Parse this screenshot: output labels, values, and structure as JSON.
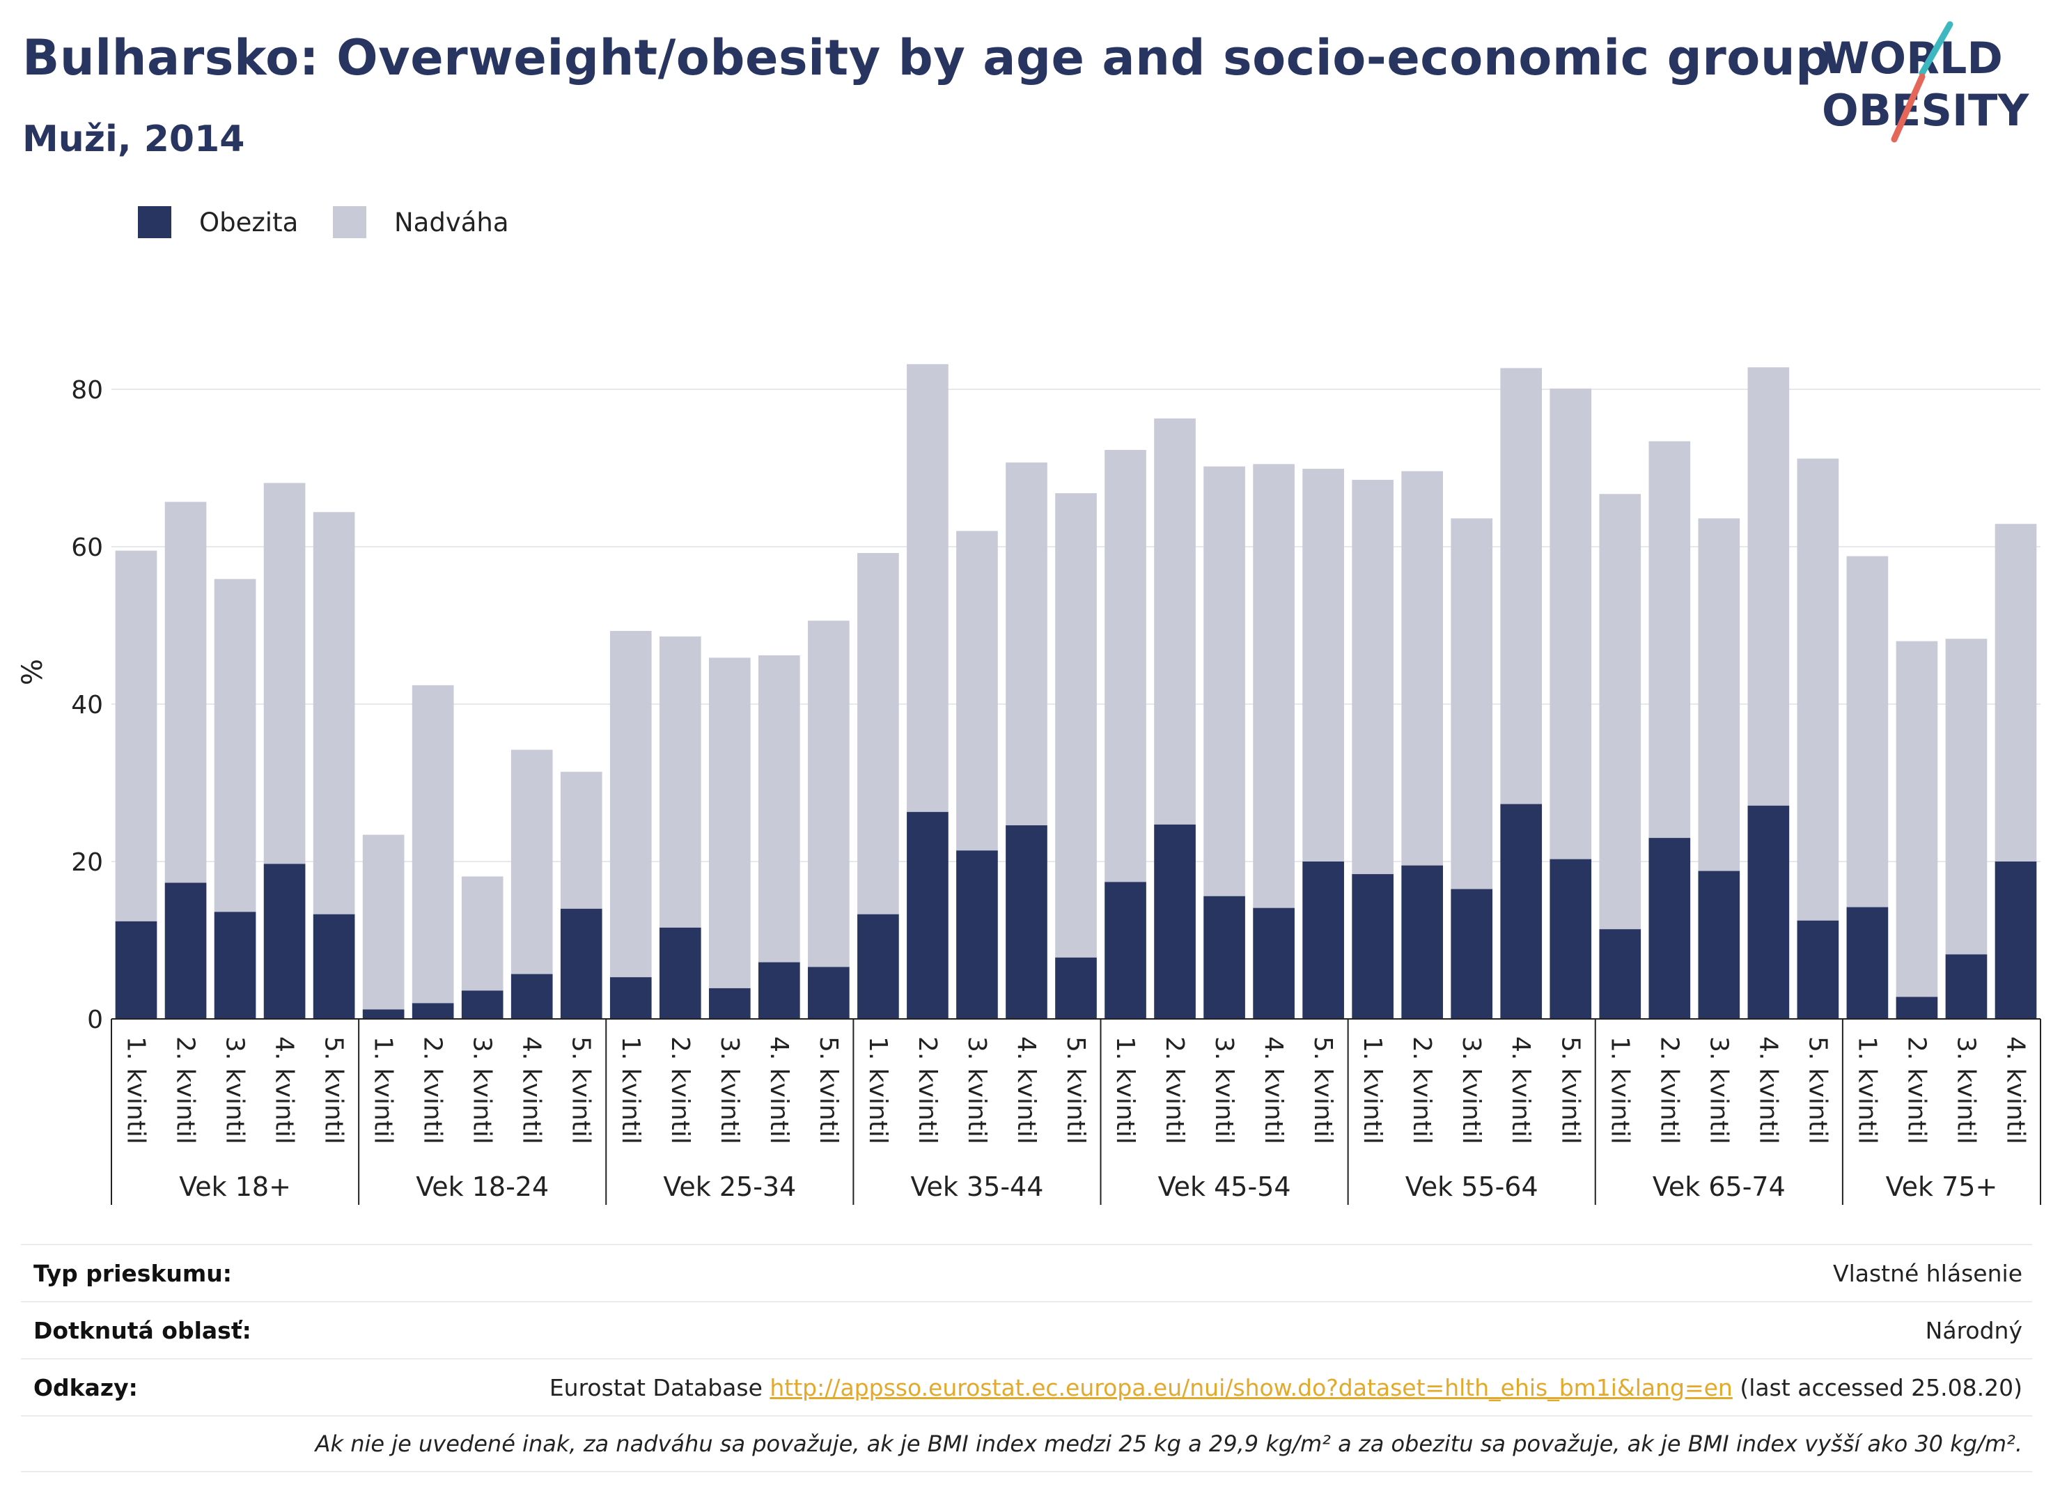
{
  "title": "Bulharsko: Overweight/obesity by age and socio-economic group",
  "subtitle": "Muži, 2014",
  "logo": {
    "line1": "WORLD",
    "line2": "OBESITY"
  },
  "colors": {
    "obezita": "#283561",
    "nadvaha": "#c9cad7",
    "title": "#283561",
    "logo_slash_top": "#3db8c0",
    "logo_slash_bottom": "#e5675a",
    "grid": "#e6e8ec"
  },
  "chart_data": {
    "type": "bar",
    "stacked": true,
    "ylabel": "%",
    "yticks": [
      0,
      20,
      40,
      60,
      80
    ],
    "ylim": [
      0,
      90
    ],
    "grid": true,
    "legend_position": "top-left",
    "groups": [
      {
        "label": "Vek 18+",
        "categories": [
          "1. kvintil",
          "2. kvintil",
          "3. kvintil",
          "4. kvintil",
          "5. kvintil"
        ]
      },
      {
        "label": "Vek 18-24",
        "categories": [
          "1. kvintil",
          "2. kvintil",
          "3. kvintil",
          "4. kvintil",
          "5. kvintil"
        ]
      },
      {
        "label": "Vek 25-34",
        "categories": [
          "1. kvintil",
          "2. kvintil",
          "3. kvintil",
          "4. kvintil",
          "5. kvintil"
        ]
      },
      {
        "label": "Vek 35-44",
        "categories": [
          "1. kvintil",
          "2. kvintil",
          "3. kvintil",
          "4. kvintil",
          "5. kvintil"
        ]
      },
      {
        "label": "Vek 45-54",
        "categories": [
          "1. kvintil",
          "2. kvintil",
          "3. kvintil",
          "4. kvintil",
          "5. kvintil"
        ]
      },
      {
        "label": "Vek 55-64",
        "categories": [
          "1. kvintil",
          "2. kvintil",
          "3. kvintil",
          "4. kvintil",
          "5. kvintil"
        ]
      },
      {
        "label": "Vek 65-74",
        "categories": [
          "1. kvintil",
          "2. kvintil",
          "3. kvintil",
          "4. kvintil",
          "5. kvintil"
        ]
      },
      {
        "label": "Vek 75+",
        "categories": [
          "1. kvintil",
          "2. kvintil",
          "3. kvintil",
          "4. kvintil"
        ]
      }
    ],
    "series": [
      {
        "name": "Obezita",
        "values": [
          12.4,
          17.3,
          13.6,
          19.7,
          13.3,
          1.2,
          2.0,
          3.6,
          5.7,
          14.0,
          5.3,
          11.6,
          3.9,
          7.2,
          6.6,
          13.3,
          26.3,
          21.4,
          24.6,
          7.8,
          17.4,
          24.7,
          15.6,
          14.1,
          20.0,
          18.4,
          19.5,
          16.5,
          27.3,
          20.3,
          11.4,
          23.0,
          18.8,
          27.1,
          12.5,
          14.2,
          2.8,
          8.2,
          20.0
        ]
      },
      {
        "name": "Nadváha",
        "values": [
          47.1,
          48.4,
          42.3,
          48.4,
          51.1,
          22.2,
          40.4,
          14.5,
          28.5,
          17.4,
          44.0,
          37.0,
          42.0,
          39.0,
          44.0,
          45.9,
          56.9,
          40.6,
          46.1,
          59.0,
          54.9,
          51.6,
          54.6,
          56.4,
          49.9,
          50.1,
          50.1,
          47.1,
          55.4,
          59.8,
          55.3,
          50.4,
          44.8,
          55.7,
          58.7,
          44.6,
          45.2,
          40.1,
          42.9
        ]
      }
    ]
  },
  "info": {
    "survey_type": {
      "label": "Typ prieskumu:",
      "value": "Vlastné hlásenie"
    },
    "area": {
      "label": "Dotknutá oblasť:",
      "value": "Národný"
    },
    "references": {
      "label": "Odkazy:",
      "prefix": "Eurostat Database ",
      "link": "http://appsso.eurostat.ec.europa.eu/nui/show.do?dataset=hlth_ehis_bm1i&lang=en",
      "suffix": " (last accessed 25.08.20)"
    },
    "note": "Ak nie je uvedené inak, za nadváhu sa považuje, ak je BMI index medzi 25 kg a 29,9 kg/m² a za obezitu sa považuje, ak je BMI index vyšší ako 30 kg/m²."
  }
}
